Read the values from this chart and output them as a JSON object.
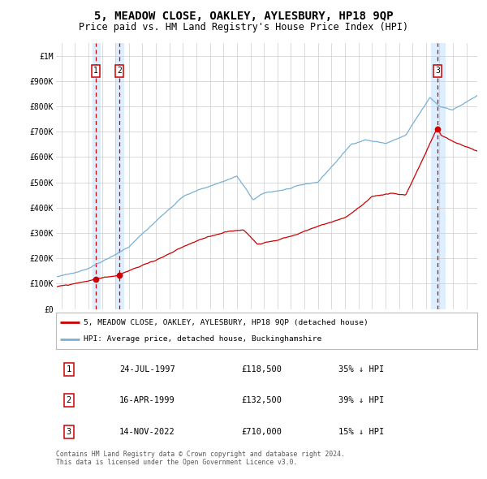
{
  "title": "5, MEADOW CLOSE, OAKLEY, AYLESBURY, HP18 9QP",
  "subtitle": "Price paid vs. HM Land Registry's House Price Index (HPI)",
  "title_fontsize": 10,
  "subtitle_fontsize": 8.5,
  "xlim": [
    1994.6,
    2025.8
  ],
  "ylim": [
    0,
    1050000
  ],
  "yticks": [
    0,
    100000,
    200000,
    300000,
    400000,
    500000,
    600000,
    700000,
    800000,
    900000,
    1000000
  ],
  "ytick_labels": [
    "£0",
    "£100K",
    "£200K",
    "£300K",
    "£400K",
    "£500K",
    "£600K",
    "£700K",
    "£800K",
    "£900K",
    "£1M"
  ],
  "xticks": [
    1995,
    1996,
    1997,
    1998,
    1999,
    2000,
    2001,
    2002,
    2003,
    2004,
    2005,
    2006,
    2007,
    2008,
    2009,
    2010,
    2011,
    2012,
    2013,
    2014,
    2015,
    2016,
    2017,
    2018,
    2019,
    2020,
    2021,
    2022,
    2023,
    2024,
    2025
  ],
  "sales": [
    {
      "date_num": 1997.559,
      "price": 118500,
      "label": "1",
      "date_str": "24-JUL-1997",
      "pct": "35% ↓ HPI"
    },
    {
      "date_num": 1999.292,
      "price": 132500,
      "label": "2",
      "date_str": "16-APR-1999",
      "pct": "39% ↓ HPI"
    },
    {
      "date_num": 2022.874,
      "price": 710000,
      "label": "3",
      "date_str": "14-NOV-2022",
      "pct": "15% ↓ HPI"
    }
  ],
  "legend_entries": [
    {
      "label": "5, MEADOW CLOSE, OAKLEY, AYLESBURY, HP18 9QP (detached house)",
      "color": "#cc0000",
      "lw": 1.5
    },
    {
      "label": "HPI: Average price, detached house, Buckinghamshire",
      "color": "#7ab0d4",
      "lw": 1.5
    }
  ],
  "footnote": "Contains HM Land Registry data © Crown copyright and database right 2024.\nThis data is licensed under the Open Government Licence v3.0.",
  "vline_color": "#cc0000",
  "vband_color": "#ddeeff",
  "grid_color": "#cccccc",
  "bg_color": "#ffffff",
  "font_family": "monospace",
  "hpi_color": "#7ab0d4",
  "price_color": "#cc0000"
}
